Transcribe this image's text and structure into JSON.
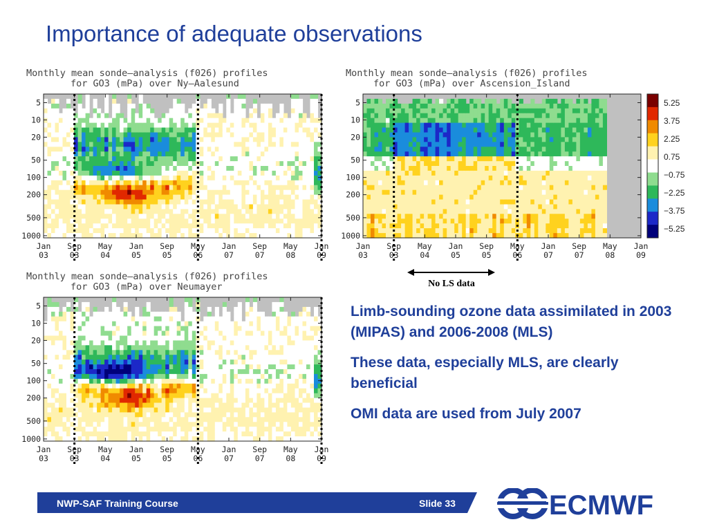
{
  "slide": {
    "title": "Importance of adequate observations",
    "footer_left": "NWP-SAF Training Course",
    "footer_right": "Slide 33",
    "logo_text": "ECMWF"
  },
  "bullets": [
    "Limb-sounding ozone data assimilated in 2003 (MIPAS) and 2006-2008 (MLS)",
    "These data, especially MLS, are clearly beneficial",
    "OMI data are used from July 2007"
  ],
  "annotation": {
    "label": "No LS data"
  },
  "colors": {
    "title": "#1f3f9a",
    "footer": "#1f3f9a",
    "no_data": "#c0c0c0",
    "palette": [
      "#00007a",
      "#1c28c8",
      "#1a8cdc",
      "#2eb85a",
      "#8fdc8f",
      "#ffffff",
      "#fff2b0",
      "#ffd21e",
      "#f08a00",
      "#e12800",
      "#7a0000"
    ]
  },
  "chart_data": [
    {
      "type": "heatmap",
      "title": "Monthly mean sonde—analysis (f026) profiles",
      "subtitle": "for GO3 (mPa) over Ny—Aalesund",
      "y_ticks": [
        "5",
        "10",
        "20",
        "50",
        "100",
        "200",
        "500",
        "1000"
      ],
      "x_ticks": [
        [
          "Jan",
          "03"
        ],
        [
          "Sep",
          "03"
        ],
        [
          "May",
          "04"
        ],
        [
          "Jan",
          "05"
        ],
        [
          "Sep",
          "05"
        ],
        [
          "May",
          "06"
        ],
        [
          "Jan",
          "07"
        ],
        [
          "Sep",
          "07"
        ],
        [
          "May",
          "08"
        ],
        [
          "Jan",
          "09"
        ]
      ],
      "period_markers": [
        [
          "Sep",
          "03"
        ],
        [
          "May",
          "06"
        ],
        [
          "Jan",
          "09"
        ]
      ]
    },
    {
      "type": "heatmap",
      "title": "Monthly mean sonde—analysis (f026) profiles",
      "subtitle": "for GO3 (mPa) over Ascension_Island",
      "y_ticks": [
        "5",
        "10",
        "20",
        "50",
        "100",
        "200",
        "500",
        "1000"
      ],
      "x_ticks": [
        [
          "Jan",
          "03"
        ],
        [
          "Sep",
          "03"
        ],
        [
          "May",
          "04"
        ],
        [
          "Jan",
          "05"
        ],
        [
          "Sep",
          "05"
        ],
        [
          "May",
          "06"
        ],
        [
          "Jan",
          "07"
        ],
        [
          "Sep",
          "07"
        ],
        [
          "May",
          "08"
        ],
        [
          "Jan",
          "09"
        ]
      ],
      "period_markers": [
        [
          "Sep",
          "03"
        ],
        [
          "May",
          "06"
        ]
      ],
      "colorbar": {
        "labels": [
          "5.25",
          "3.75",
          "2.25",
          "0.75",
          "−0.75",
          "−2.25",
          "−3.75",
          "−5.25"
        ]
      }
    },
    {
      "type": "heatmap",
      "title": "Monthly mean sonde—analysis (f026) profiles",
      "subtitle": "for GO3 (mPa) over Neumayer",
      "y_ticks": [
        "5",
        "10",
        "20",
        "50",
        "100",
        "200",
        "500",
        "1000"
      ],
      "x_ticks": [
        [
          "Jan",
          "03"
        ],
        [
          "Sep",
          "03"
        ],
        [
          "May",
          "04"
        ],
        [
          "Jan",
          "05"
        ],
        [
          "Sep",
          "05"
        ],
        [
          "May",
          "06"
        ],
        [
          "Jan",
          "07"
        ],
        [
          "Sep",
          "07"
        ],
        [
          "May",
          "08"
        ],
        [
          "Jan",
          "09"
        ]
      ],
      "period_markers": [
        [
          "Sep",
          "03"
        ],
        [
          "May",
          "06"
        ],
        [
          "Jan",
          "09"
        ]
      ]
    }
  ]
}
